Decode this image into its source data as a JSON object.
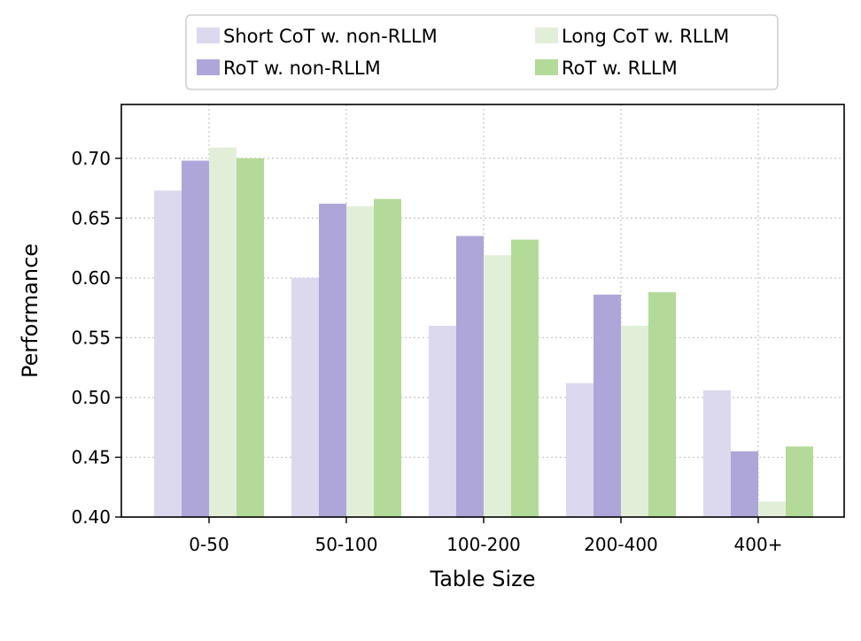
{
  "chart_data": {
    "type": "bar",
    "title": "",
    "xlabel": "Table Size",
    "ylabel": "Performance",
    "categories": [
      "0-50",
      "50-100",
      "100-200",
      "200-400",
      "400+"
    ],
    "ylim": [
      0.4,
      0.745
    ],
    "yticks": [
      0.4,
      0.45,
      0.5,
      0.55,
      0.6,
      0.65,
      0.7
    ],
    "ytick_labels": [
      "0.40",
      "0.45",
      "0.50",
      "0.55",
      "0.60",
      "0.65",
      "0.70"
    ],
    "grid": true,
    "legend_position": "top-center",
    "series": [
      {
        "name": "Short CoT w. non-RLLM",
        "color": "#dcd9ee",
        "values": [
          0.673,
          0.6,
          0.56,
          0.512,
          0.506
        ]
      },
      {
        "name": "RoT w. non-RLLM",
        "color": "#aea6d8",
        "values": [
          0.698,
          0.662,
          0.635,
          0.586,
          0.455
        ]
      },
      {
        "name": "Long CoT w. RLLM",
        "color": "#e2efd8",
        "values": [
          0.709,
          0.66,
          0.619,
          0.56,
          0.413
        ]
      },
      {
        "name": "RoT w. RLLM",
        "color": "#b3da98",
        "values": [
          0.7,
          0.666,
          0.632,
          0.588,
          0.459
        ]
      }
    ]
  }
}
